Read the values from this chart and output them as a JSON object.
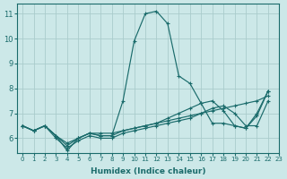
{
  "xlabel": "Humidex (Indice chaleur)",
  "bg_color": "#cce8e8",
  "grid_color": "#aacccc",
  "line_color": "#1a6b6b",
  "xlim": [
    -0.5,
    23
  ],
  "ylim": [
    5.4,
    11.4
  ],
  "yticks": [
    6,
    7,
    8,
    9,
    10,
    11
  ],
  "xticks": [
    0,
    1,
    2,
    3,
    4,
    5,
    6,
    7,
    8,
    9,
    10,
    11,
    12,
    13,
    14,
    15,
    16,
    17,
    18,
    19,
    20,
    21,
    22,
    23
  ],
  "lines": [
    {
      "x": [
        0,
        1,
        2,
        3,
        4,
        5,
        6,
        7,
        8,
        9,
        10,
        11,
        12,
        13,
        14,
        15,
        16,
        17,
        18,
        19,
        20,
        21,
        22,
        23
      ],
      "y": [
        6.5,
        6.3,
        6.5,
        6.1,
        5.5,
        6.0,
        6.2,
        6.1,
        6.1,
        7.5,
        9.9,
        11.0,
        11.1,
        10.6,
        8.5,
        8.2,
        7.4,
        6.6,
        6.6,
        6.5,
        6.4,
        6.9,
        7.9,
        null
      ]
    },
    {
      "x": [
        0,
        1,
        2,
        3,
        4,
        5,
        6,
        7,
        8,
        9,
        10,
        11,
        12,
        13,
        14,
        15,
        16,
        17,
        18,
        19,
        20,
        21,
        22,
        23
      ],
      "y": [
        6.5,
        6.3,
        6.5,
        6.1,
        5.7,
        6.0,
        6.2,
        6.1,
        6.1,
        6.3,
        6.4,
        6.5,
        6.6,
        6.8,
        7.0,
        7.2,
        7.4,
        7.5,
        7.1,
        6.5,
        6.4,
        7.0,
        7.9,
        null
      ]
    },
    {
      "x": [
        0,
        1,
        2,
        3,
        4,
        5,
        6,
        7,
        8,
        9,
        10,
        11,
        12,
        13,
        14,
        15,
        16,
        17,
        18,
        19,
        20,
        21,
        22,
        23
      ],
      "y": [
        6.5,
        6.3,
        6.5,
        6.1,
        5.8,
        6.0,
        6.2,
        6.2,
        6.2,
        6.3,
        6.4,
        6.5,
        6.6,
        6.7,
        6.8,
        6.9,
        7.0,
        7.1,
        7.2,
        7.3,
        7.4,
        7.5,
        7.7,
        null
      ]
    },
    {
      "x": [
        0,
        1,
        2,
        3,
        4,
        5,
        6,
        7,
        8,
        9,
        10,
        11,
        12,
        13,
        14,
        15,
        16,
        17,
        18,
        19,
        20,
        21,
        22,
        23
      ],
      "y": [
        6.5,
        6.3,
        6.5,
        6.0,
        5.6,
        5.9,
        6.1,
        6.0,
        6.0,
        6.2,
        6.3,
        6.4,
        6.5,
        6.6,
        6.7,
        6.8,
        7.0,
        7.2,
        7.3,
        7.0,
        6.5,
        6.5,
        7.5,
        null
      ]
    }
  ]
}
